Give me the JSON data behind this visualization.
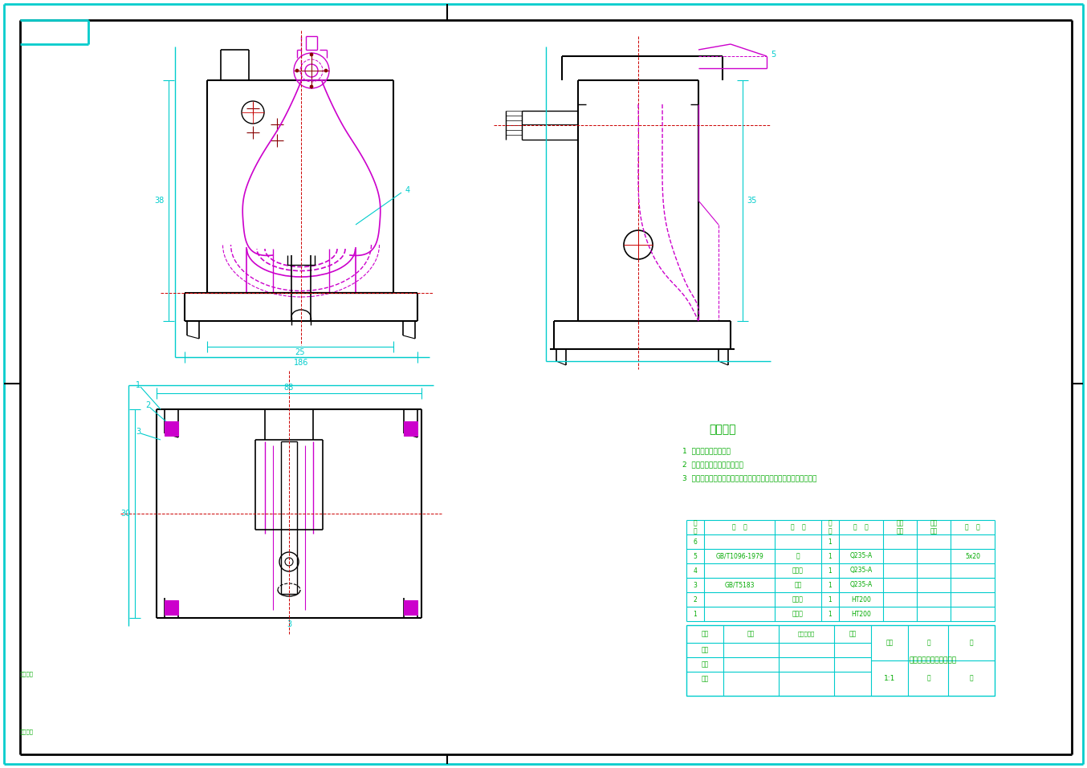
{
  "bg_color": "#ffffff",
  "cyan": "#00cccc",
  "magenta": "#cc00cc",
  "red": "#cc0000",
  "black": "#000000",
  "green": "#00aa00",
  "darkred": "#880000",
  "tech_req_title": "技术要求",
  "tech_req_lines": [
    "1  间隙配合由图可查。",
    "2  镜面不允许有沙眼、气孔。",
    "3  使用方法：加工中心定具体上的中心，将各层面处理后按图定位。"
  ],
  "drawing_title": "变速器换挡叉工艺设计图",
  "parts": [
    {
      "seq": "6",
      "std": "",
      "name": "",
      "qty": "1",
      "mat": "",
      "note": ""
    },
    {
      "seq": "5",
      "std": "GB/T1096-1979",
      "name": "键",
      "qty": "1",
      "mat": "Q235-A",
      "note": "5x20"
    },
    {
      "seq": "4",
      "std": "",
      "name": "定位柳",
      "qty": "1",
      "mat": "Q235-A",
      "note": ""
    },
    {
      "seq": "3",
      "std": "GB/T5183",
      "name": "螺母",
      "qty": "1",
      "mat": "Q235-A",
      "note": ""
    },
    {
      "seq": "2",
      "std": "",
      "name": "测量圆",
      "qty": "1",
      "mat": "HT200",
      "note": ""
    },
    {
      "seq": "1",
      "std": "",
      "name": "定位板",
      "qty": "1",
      "mat": "HT200",
      "note": ""
    }
  ],
  "scale": "1:1"
}
